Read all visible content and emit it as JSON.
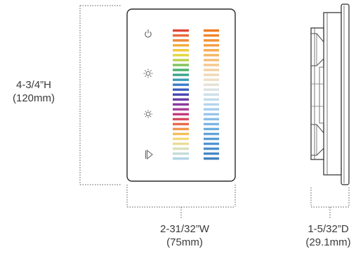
{
  "dimensions": {
    "height": {
      "imperial": "4-3/4”H",
      "metric": "(120mm)"
    },
    "width": {
      "imperial": "2-31/32”W",
      "metric": "(75mm)"
    },
    "depth": {
      "imperial": "1-5/32”D",
      "metric": "(29.1mm)"
    }
  },
  "panel": {
    "buttons": [
      "power-icon",
      "brightness-up-icon",
      "brightness-down-icon",
      "play-mode-icon"
    ],
    "left_slider_colors": [
      "#e0463a",
      "#e86a3a",
      "#ee8a3a",
      "#f2ad3a",
      "#f2c73a",
      "#e2d63a",
      "#b9d24a",
      "#7fc35a",
      "#46b06a",
      "#3aa58c",
      "#3a9ab8",
      "#3a7cc8",
      "#3a5cc0",
      "#4a46b0",
      "#6a3aa8",
      "#8a3aa0",
      "#a83a96",
      "#c23a7e",
      "#d84a5e",
      "#e86a4a",
      "#f0964a",
      "#f4be5a",
      "#f4d878",
      "#eadc98",
      "#d8e0b8",
      "#c4dcd8",
      "#b0d4e8"
    ],
    "right_slider_colors": [
      "#f07a1e",
      "#f28628",
      "#f39234",
      "#f49e42",
      "#f5aa52",
      "#f5b464",
      "#f5be78",
      "#f4c88c",
      "#f2d0a0",
      "#efd8b4",
      "#ebdec6",
      "#e4e2d6",
      "#dae2e2",
      "#cedfe8",
      "#c2dbec",
      "#b4d5ee",
      "#a6cdee",
      "#98c5ec",
      "#8abde8",
      "#7cb4e4",
      "#6eacdf",
      "#62a4da",
      "#589cd5",
      "#5094d0",
      "#4a8ecb",
      "#4688c6",
      "#4282c0"
    ]
  }
}
